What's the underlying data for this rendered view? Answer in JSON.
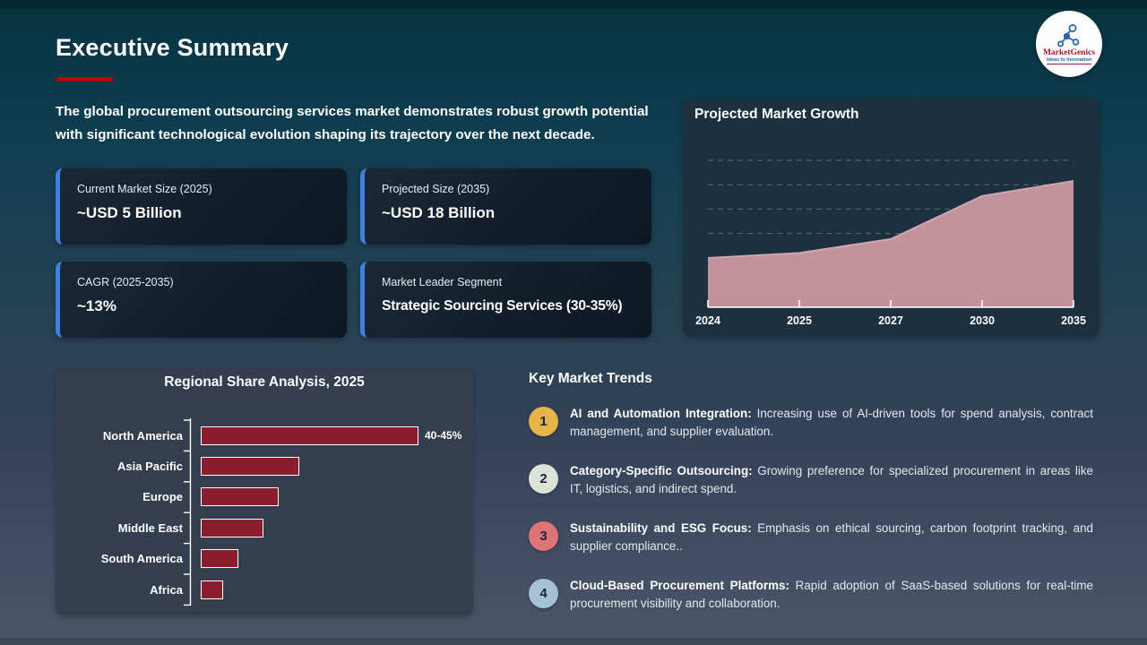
{
  "slide": {
    "title": "Executive Summary",
    "intro": "The global procurement outsourcing services market demonstrates robust growth potential with significant technological evolution shaping its trajectory over the next decade.",
    "logo": {
      "brand": "MarketGenics",
      "tagline": "Ideas to Innovation"
    }
  },
  "stat_cards": [
    {
      "label": "Current Market Size (2025)",
      "value": "~USD 5 Billion"
    },
    {
      "label": "Projected Size (2035)",
      "value": "~USD 18 Billion"
    },
    {
      "label": "CAGR (2025-2035)",
      "value": "~13%"
    },
    {
      "label": "Market Leader Segment",
      "value": "Strategic Sourcing Services (30-35%)"
    }
  ],
  "trends": {
    "heading": "Key Market Trends",
    "items": [
      {
        "number": "1",
        "badge_color": "#e6b54a",
        "title": "AI and Automation Integration",
        "description": "Increasing use of AI-driven tools for spend analysis, contract management, and supplier evaluation."
      },
      {
        "number": "2",
        "badge_color": "#dce2d8",
        "title": "Category-Specific Outsourcing",
        "description": "Growing preference for specialized procurement in areas like IT, logistics, and indirect spend."
      },
      {
        "number": "3",
        "badge_color": "#dc7478",
        "title": "Sustainability and ESG Focus",
        "description": "Emphasis on ethical sourcing, carbon footprint tracking, and supplier compliance.."
      },
      {
        "number": "4",
        "badge_color": "#a4c2d4",
        "title": "Cloud-Based Procurement Platforms",
        "description": "Rapid adoption of SaaS-based solutions for real-time procurement visibility and collaboration."
      }
    ]
  },
  "colors": {
    "background_top": "#0b3a4c",
    "background_bottom": "#4b5669",
    "title_underline": "#c00000",
    "card_accent": "#4080dd",
    "area_fill": "#c0939d",
    "bar_fill": "#8b1e2d"
  },
  "chart_data": [
    {
      "type": "area",
      "title": "Projected Market Growth",
      "x": [
        "2024",
        "2025",
        "2027",
        "2030",
        "2035"
      ],
      "values_pct_of_max": [
        39,
        43,
        54,
        88,
        100
      ],
      "values_note": "No y-axis labels shown; curve rises slowly 2024-2027 then steeply to 2035. Slide text anchors: ~USD 5B (2025) to ~USD 18B (2035).",
      "xlabel": "",
      "ylabel": "",
      "grid": "dashed horizontal gridlines",
      "legend": "none",
      "area_color": "#c0939d"
    },
    {
      "type": "bar",
      "orientation": "horizontal",
      "title": "Regional Share Analysis, 2025",
      "categories": [
        "North America",
        "Asia Pacific",
        "Europe",
        "Middle East",
        "South America",
        "Africa"
      ],
      "values": [
        42.5,
        19,
        15,
        12,
        7,
        4
      ],
      "values_note": "percent share estimated from bar lengths; only North America labeled",
      "data_labels": [
        "40-45%",
        "",
        "",
        "",
        "",
        ""
      ],
      "bar_color": "#8b1e2d",
      "xlim": [
        0,
        45
      ],
      "legend": "none"
    }
  ]
}
